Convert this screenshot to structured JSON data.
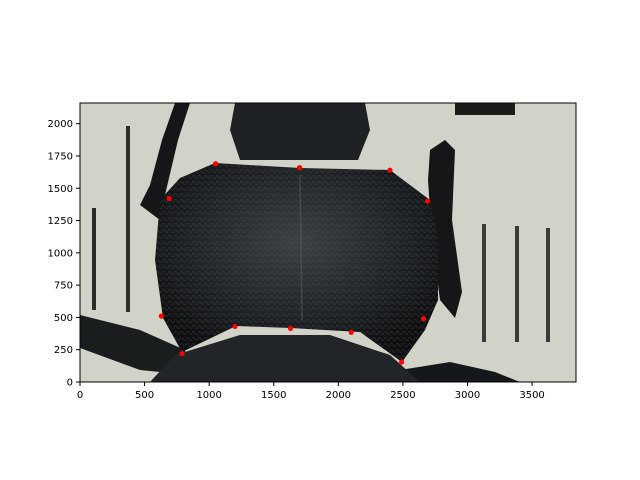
{
  "chart_data": {
    "type": "scatter",
    "title": "",
    "xlabel": "",
    "ylabel": "",
    "xlim": [
      0,
      3840
    ],
    "ylim": [
      0,
      2160
    ],
    "grid": false,
    "background": "photograph of a beetle pronotum (image shown with imshow, origin lower)",
    "xticks": [
      0,
      500,
      1000,
      1500,
      2000,
      2500,
      3000,
      3500
    ],
    "yticks": [
      0,
      250,
      500,
      750,
      1000,
      1250,
      1500,
      1750,
      2000
    ],
    "series": [
      {
        "marker": "dot",
        "color": "#ff0000",
        "points": [
          {
            "x": 1050,
            "y": 1690
          },
          {
            "x": 1700,
            "y": 1660
          },
          {
            "x": 2400,
            "y": 1640
          },
          {
            "x": 690,
            "y": 1420
          },
          {
            "x": 2690,
            "y": 1400
          },
          {
            "x": 630,
            "y": 510
          },
          {
            "x": 2660,
            "y": 490
          },
          {
            "x": 1200,
            "y": 430
          },
          {
            "x": 1630,
            "y": 415
          },
          {
            "x": 2100,
            "y": 385
          },
          {
            "x": 790,
            "y": 220
          },
          {
            "x": 2490,
            "y": 155
          }
        ]
      }
    ]
  }
}
